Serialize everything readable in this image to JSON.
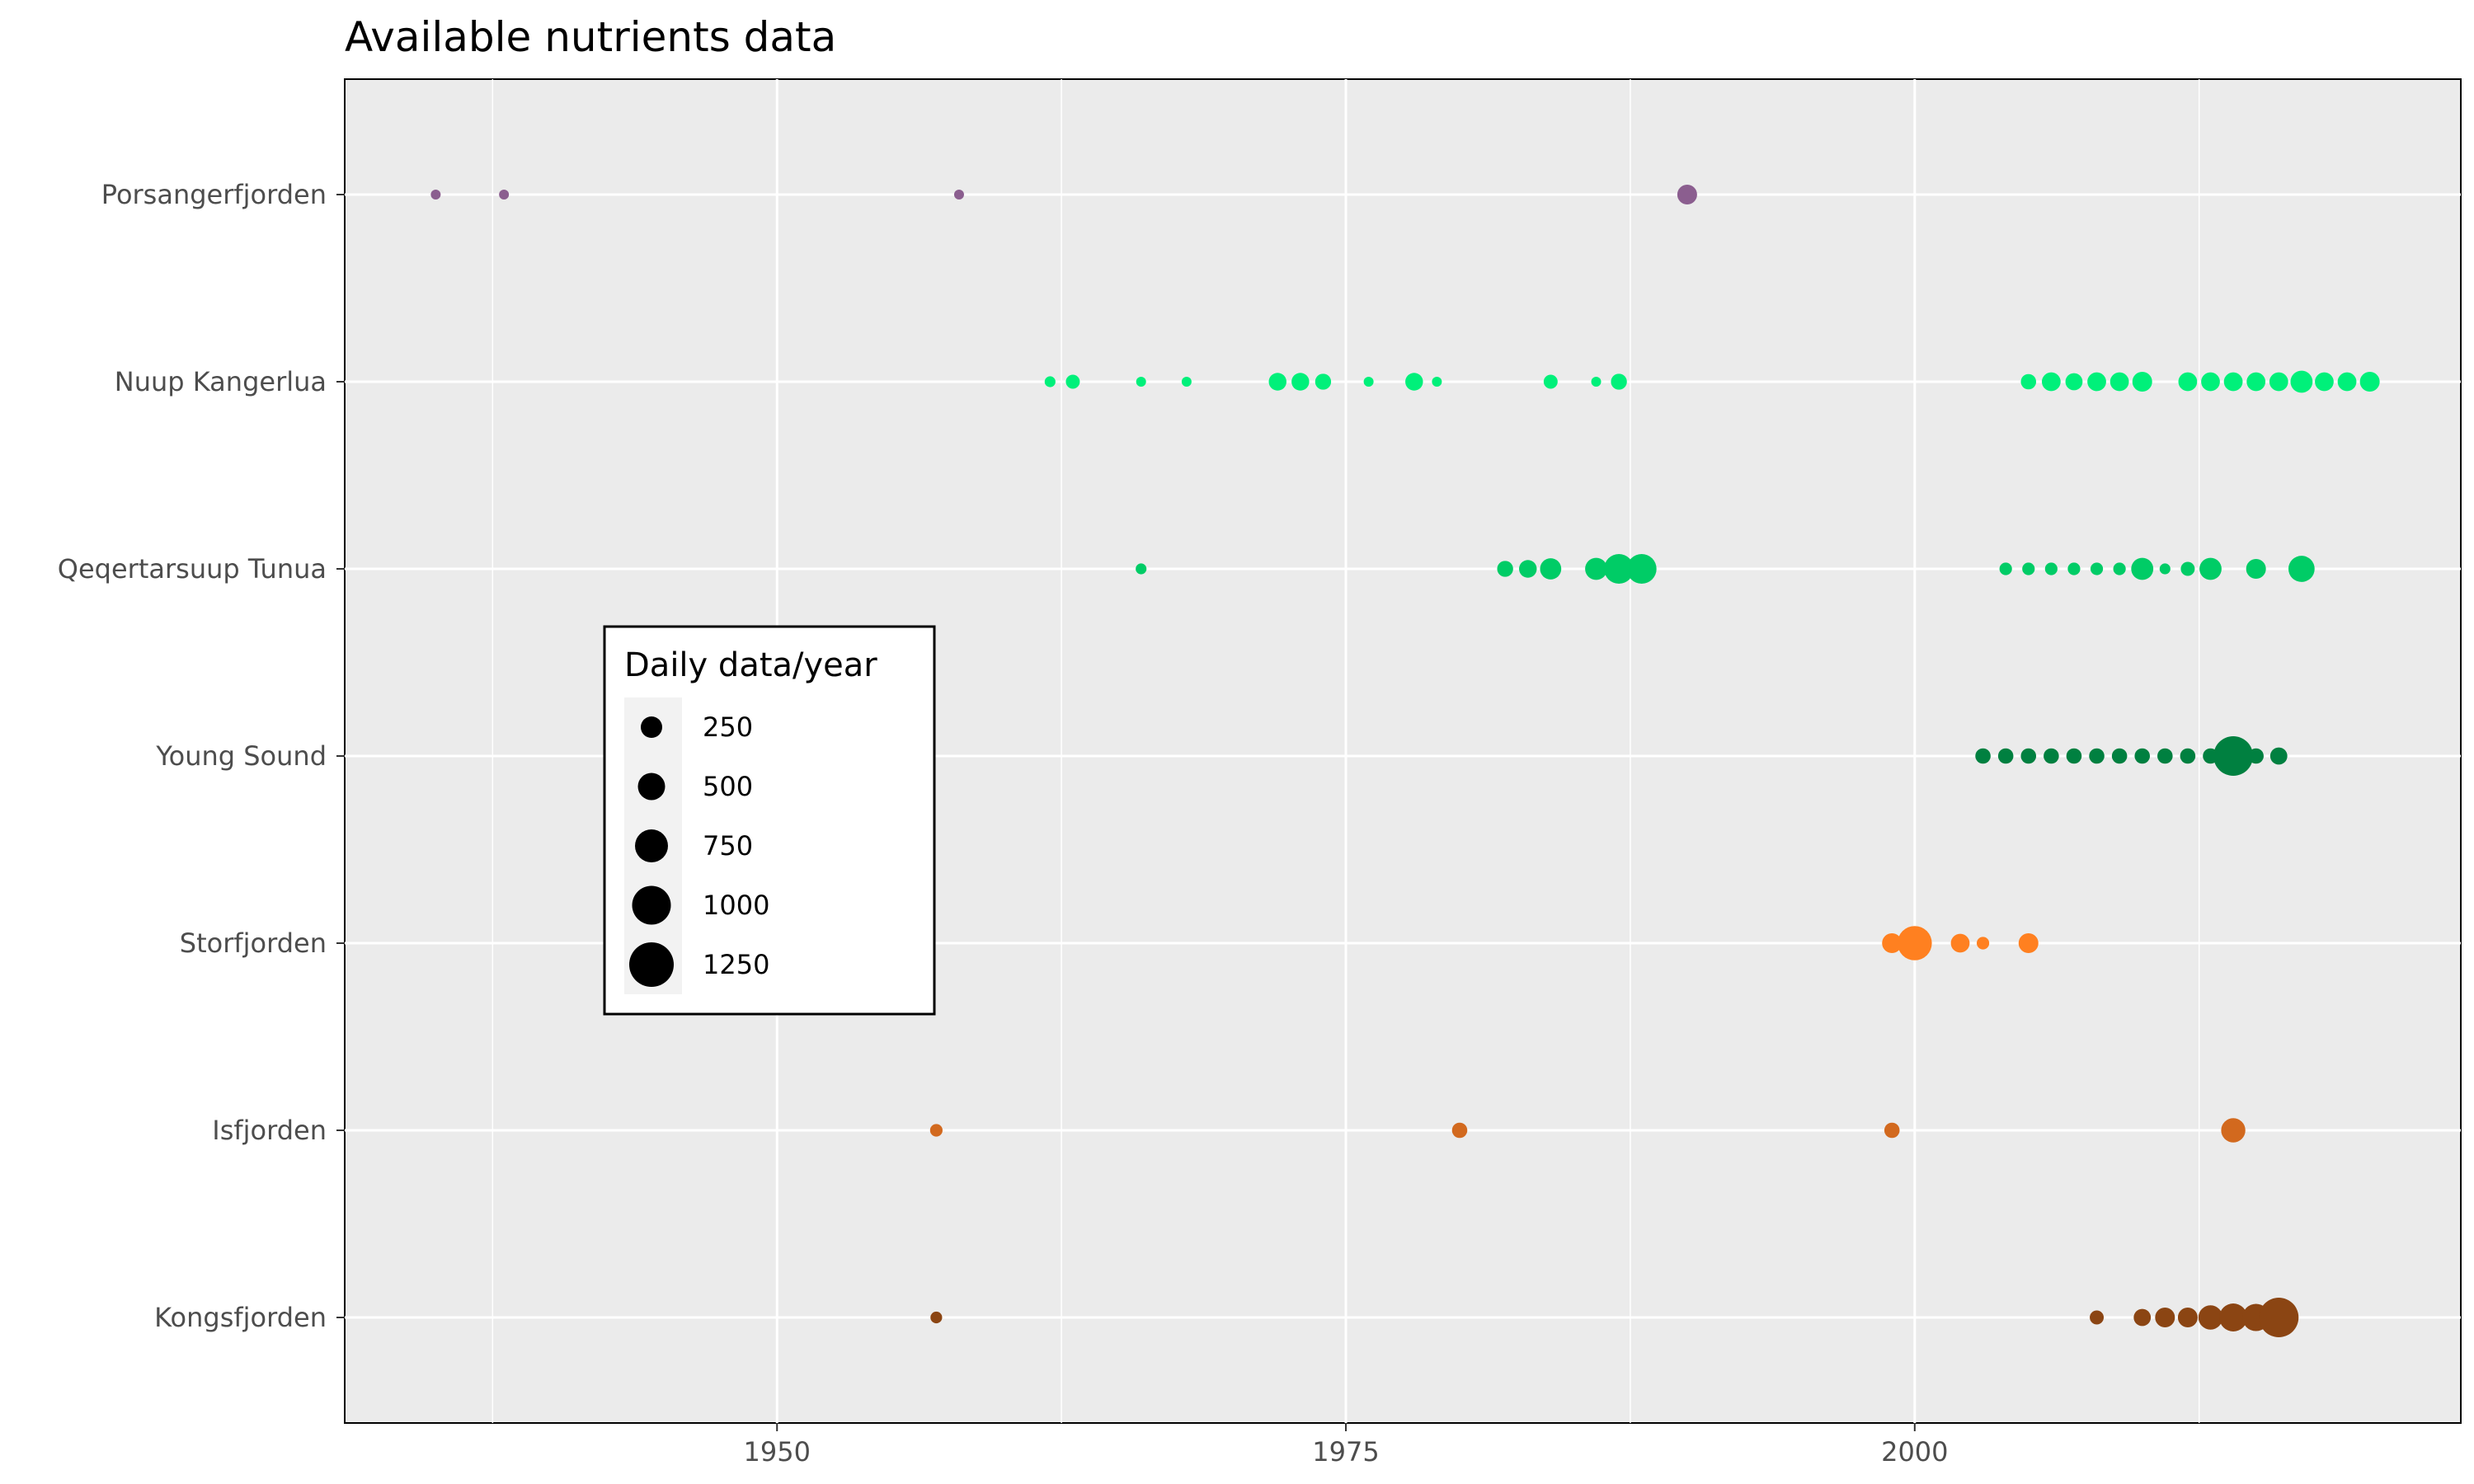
{
  "chart_data": {
    "type": "scatter",
    "title": "Available nutrients data",
    "xlabel": "",
    "ylabel": "",
    "xlim": [
      1931,
      2024
    ],
    "x_ticks": [
      1950,
      1975,
      2000
    ],
    "grid": true,
    "categories": [
      "Kongsfjorden",
      "Isfjorden",
      "Storfjorden",
      "Young Sound",
      "Qeqertarsuup Tunua",
      "Nuup Kangerlua",
      "Porsangerfjorden"
    ],
    "legend": {
      "title": "Daily data/year",
      "placement": "inside-left",
      "entries": [
        {
          "label": "250",
          "value": 250
        },
        {
          "label": "500",
          "value": 500
        },
        {
          "label": "750",
          "value": 750
        },
        {
          "label": "1000",
          "value": 1000
        },
        {
          "label": "1250",
          "value": 1250
        }
      ]
    },
    "series": [
      {
        "category": "Porsangerfjorden",
        "color": "#8B5E8F",
        "points": [
          {
            "x": 1935,
            "size": 50
          },
          {
            "x": 1938,
            "size": 50
          },
          {
            "x": 1958,
            "size": 50
          },
          {
            "x": 1990,
            "size": 200
          }
        ]
      },
      {
        "category": "Nuup Kangerlua",
        "color": "#00F07A",
        "points": [
          {
            "x": 1962,
            "size": 60
          },
          {
            "x": 1963,
            "size": 100
          },
          {
            "x": 1966,
            "size": 50
          },
          {
            "x": 1968,
            "size": 50
          },
          {
            "x": 1972,
            "size": 160
          },
          {
            "x": 1973,
            "size": 160
          },
          {
            "x": 1974,
            "size": 130
          },
          {
            "x": 1976,
            "size": 50
          },
          {
            "x": 1978,
            "size": 160
          },
          {
            "x": 1979,
            "size": 50
          },
          {
            "x": 1984,
            "size": 100
          },
          {
            "x": 1986,
            "size": 50
          },
          {
            "x": 1987,
            "size": 130
          },
          {
            "x": 2005,
            "size": 120
          },
          {
            "x": 2006,
            "size": 180
          },
          {
            "x": 2007,
            "size": 150
          },
          {
            "x": 2008,
            "size": 180
          },
          {
            "x": 2009,
            "size": 180
          },
          {
            "x": 2010,
            "size": 200
          },
          {
            "x": 2012,
            "size": 180
          },
          {
            "x": 2013,
            "size": 180
          },
          {
            "x": 2014,
            "size": 180
          },
          {
            "x": 2015,
            "size": 180
          },
          {
            "x": 2016,
            "size": 180
          },
          {
            "x": 2017,
            "size": 250
          },
          {
            "x": 2018,
            "size": 180
          },
          {
            "x": 2019,
            "size": 180
          },
          {
            "x": 2020,
            "size": 200
          }
        ]
      },
      {
        "category": "Qeqertarsuup Tunua",
        "color": "#00CC66",
        "points": [
          {
            "x": 1966,
            "size": 60
          },
          {
            "x": 1982,
            "size": 130
          },
          {
            "x": 1983,
            "size": 160
          },
          {
            "x": 1984,
            "size": 230
          },
          {
            "x": 1986,
            "size": 250
          },
          {
            "x": 1987,
            "size": 450
          },
          {
            "x": 1988,
            "size": 450
          },
          {
            "x": 2004,
            "size": 80
          },
          {
            "x": 2005,
            "size": 80
          },
          {
            "x": 2006,
            "size": 80
          },
          {
            "x": 2007,
            "size": 80
          },
          {
            "x": 2008,
            "size": 80
          },
          {
            "x": 2009,
            "size": 80
          },
          {
            "x": 2010,
            "size": 250
          },
          {
            "x": 2011,
            "size": 60
          },
          {
            "x": 2012,
            "size": 100
          },
          {
            "x": 2013,
            "size": 250
          },
          {
            "x": 2015,
            "size": 200
          },
          {
            "x": 2017,
            "size": 350
          }
        ]
      },
      {
        "category": "Young Sound",
        "color": "#008040",
        "points": [
          {
            "x": 2003,
            "size": 120
          },
          {
            "x": 2004,
            "size": 120
          },
          {
            "x": 2005,
            "size": 120
          },
          {
            "x": 2006,
            "size": 120
          },
          {
            "x": 2007,
            "size": 120
          },
          {
            "x": 2008,
            "size": 120
          },
          {
            "x": 2009,
            "size": 120
          },
          {
            "x": 2010,
            "size": 120
          },
          {
            "x": 2011,
            "size": 120
          },
          {
            "x": 2012,
            "size": 120
          },
          {
            "x": 2013,
            "size": 120
          },
          {
            "x": 2014,
            "size": 800
          },
          {
            "x": 2015,
            "size": 120
          },
          {
            "x": 2016,
            "size": 150
          }
        ]
      },
      {
        "category": "Storfjorden",
        "color": "#FF8020",
        "points": [
          {
            "x": 1999,
            "size": 200
          },
          {
            "x": 2000,
            "size": 600
          },
          {
            "x": 2002,
            "size": 180
          },
          {
            "x": 2003,
            "size": 80
          },
          {
            "x": 2005,
            "size": 200
          }
        ]
      },
      {
        "category": "Isfjorden",
        "color": "#D2691E",
        "points": [
          {
            "x": 1957,
            "size": 80
          },
          {
            "x": 1980,
            "size": 120
          },
          {
            "x": 1999,
            "size": 120
          },
          {
            "x": 2014,
            "size": 300
          }
        ]
      },
      {
        "category": "Kongsfjorden",
        "color": "#8B4513",
        "points": [
          {
            "x": 1957,
            "size": 70
          },
          {
            "x": 2008,
            "size": 100
          },
          {
            "x": 2010,
            "size": 150
          },
          {
            "x": 2011,
            "size": 200
          },
          {
            "x": 2012,
            "size": 200
          },
          {
            "x": 2013,
            "size": 300
          },
          {
            "x": 2014,
            "size": 400
          },
          {
            "x": 2015,
            "size": 380
          },
          {
            "x": 2016,
            "size": 800
          }
        ]
      }
    ]
  }
}
